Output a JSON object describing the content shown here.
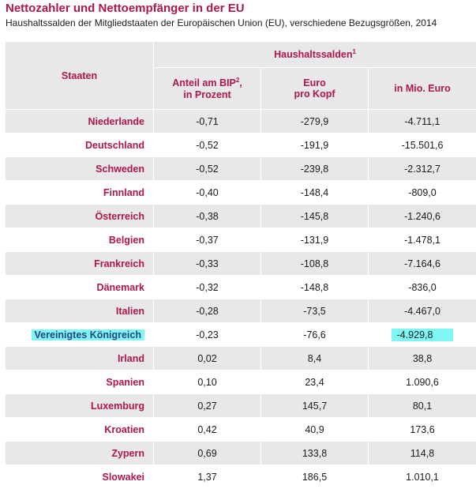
{
  "title": "Nettozahler und Nettoempfänger in der EU",
  "subtitle": "Haushaltssalden der Mitgliedstaaten der Europäischen Union (EU), verschiedene Bezugsgrößen, 2014",
  "table": {
    "col_states": "Staaten",
    "group_header": "Haushaltssalden",
    "group_sup": "1",
    "col1_line1": "Anteil am BIP",
    "col1_sup": "2",
    "col1_line1_end": ",",
    "col1_line2": "in Prozent",
    "col2_line1": "Euro",
    "col2_line2": "pro Kopf",
    "col3": "in Mio. Euro",
    "rows": [
      {
        "state": "Niederlande",
        "bip": "-0,71",
        "kopf": "-279,9",
        "mio": "-4.711,1"
      },
      {
        "state": "Deutschland",
        "bip": "-0,52",
        "kopf": "-191,9",
        "mio": "-15.501,6"
      },
      {
        "state": "Schweden",
        "bip": "-0,52",
        "kopf": "-239,8",
        "mio": "-2.312,7"
      },
      {
        "state": "Finnland",
        "bip": "-0,40",
        "kopf": "-148,4",
        "mio": "-809,0"
      },
      {
        "state": "Österreich",
        "bip": "-0,38",
        "kopf": "-145,8",
        "mio": "-1.240,6"
      },
      {
        "state": "Belgien",
        "bip": "-0,37",
        "kopf": "-131,9",
        "mio": "-1.478,1"
      },
      {
        "state": "Frankreich",
        "bip": "-0,33",
        "kopf": "-108,8",
        "mio": "-7.164,6"
      },
      {
        "state": "Dänemark",
        "bip": "-0,32",
        "kopf": "-148,8",
        "mio": "-836,0"
      },
      {
        "state": "Italien",
        "bip": "-0,28",
        "kopf": "-73,5",
        "mio": "-4.467,0"
      },
      {
        "state": "Vereinigtes Königreich",
        "bip": "-0,23",
        "kopf": "-76,6",
        "mio": "-4.929,8"
      },
      {
        "state": "Irland",
        "bip": "0,02",
        "kopf": "8,4",
        "mio": "38,8"
      },
      {
        "state": "Spanien",
        "bip": "0,10",
        "kopf": "23,4",
        "mio": "1.090,6"
      },
      {
        "state": "Luxemburg",
        "bip": "0,27",
        "kopf": "145,7",
        "mio": "80,1"
      },
      {
        "state": "Kroatien",
        "bip": "0,42",
        "kopf": "40,9",
        "mio": "173,6"
      },
      {
        "state": "Zypern",
        "bip": "0,69",
        "kopf": "133,8",
        "mio": "114,8"
      },
      {
        "state": "Slowakei",
        "bip": "1,37",
        "kopf": "186,5",
        "mio": "1.010,1"
      }
    ]
  }
}
